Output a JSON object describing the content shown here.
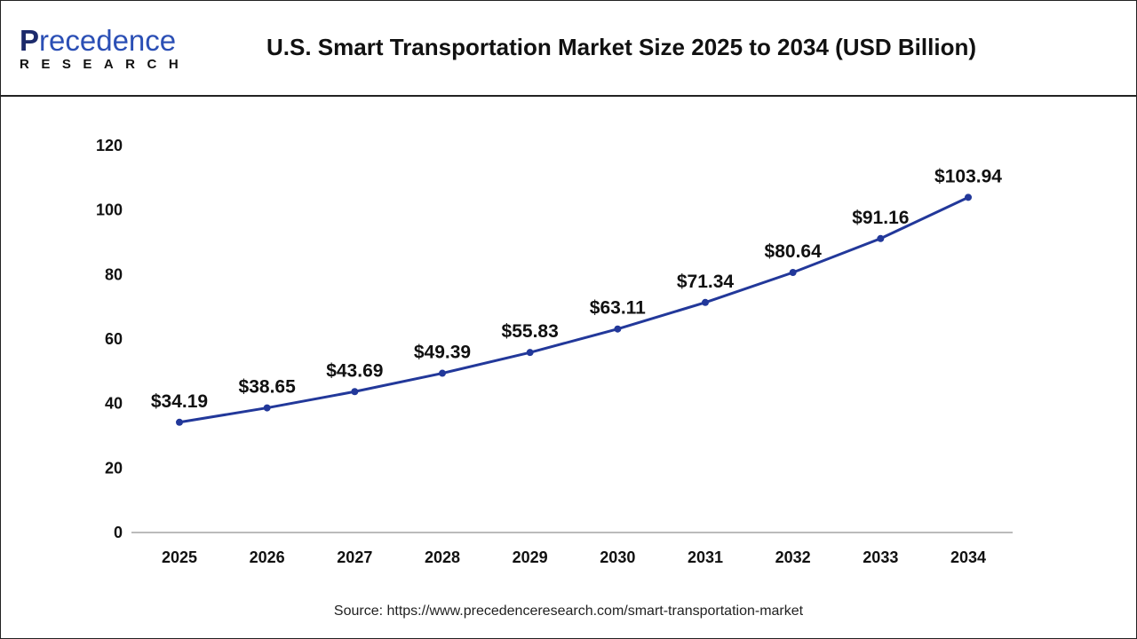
{
  "brand": {
    "logo_top": "Precedence",
    "logo_bottom": "RESEARCH"
  },
  "source": "Source: https://www.precedenceresearch.com/smart-transportation-market",
  "chart_data": {
    "type": "line",
    "title": "U.S. Smart Transportation Market Size 2025 to 2034 (USD Billion)",
    "categories": [
      "2025",
      "2026",
      "2027",
      "2028",
      "2029",
      "2030",
      "2031",
      "2032",
      "2033",
      "2034"
    ],
    "values": [
      34.19,
      38.65,
      43.69,
      49.39,
      55.83,
      63.11,
      71.34,
      80.64,
      91.16,
      103.94
    ],
    "data_labels": [
      "$34.19",
      "$38.65",
      "$43.69",
      "$49.39",
      "$55.83",
      "$63.11",
      "$71.34",
      "$80.64",
      "$91.16",
      "$103.94"
    ],
    "yticks": [
      "0",
      "20",
      "40",
      "60",
      "80",
      "100",
      "120"
    ],
    "ylim": [
      0,
      120
    ],
    "xlabel": "",
    "ylabel": "",
    "grid": false,
    "line_color": "#22389a"
  }
}
